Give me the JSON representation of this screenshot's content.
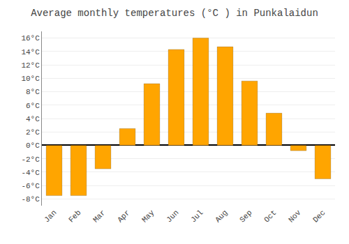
{
  "chart_data": {
    "type": "bar",
    "title": "Average monthly temperatures (°C ) in Punkalaidun",
    "categories": [
      "Jan",
      "Feb",
      "Mar",
      "Apr",
      "May",
      "Jun",
      "Jul",
      "Aug",
      "Sep",
      "Oct",
      "Nov",
      "Dec"
    ],
    "values": [
      -7.5,
      -7.5,
      -3.5,
      2.5,
      9.2,
      14.3,
      16.0,
      14.7,
      9.6,
      4.8,
      -0.8,
      -5.0
    ],
    "color": "#FFA500",
    "ylim": [
      -9,
      17
    ],
    "yticks": [
      {
        "value": -8,
        "label": "-8°C"
      },
      {
        "value": -6,
        "label": "-6°C"
      },
      {
        "value": -4,
        "label": "-4°C"
      },
      {
        "value": -2,
        "label": "-2°C"
      },
      {
        "value": 0,
        "label": "0°C"
      },
      {
        "value": 2,
        "label": "2°C"
      },
      {
        "value": 4,
        "label": "4°C"
      },
      {
        "value": 6,
        "label": "6°C"
      },
      {
        "value": 8,
        "label": "8°C"
      },
      {
        "value": 10,
        "label": "10°C"
      },
      {
        "value": 12,
        "label": "12°C"
      },
      {
        "value": 14,
        "label": "14°C"
      },
      {
        "value": 16,
        "label": "16°C"
      }
    ],
    "grid": true
  }
}
